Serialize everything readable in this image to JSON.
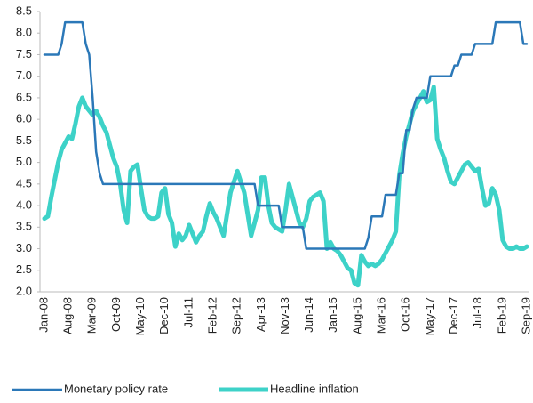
{
  "chart_data": {
    "type": "line",
    "categories": [
      "Jan-08",
      null,
      null,
      null,
      null,
      null,
      null,
      "Aug-08",
      null,
      null,
      null,
      null,
      null,
      null,
      "Mar-09",
      null,
      null,
      null,
      null,
      null,
      null,
      "Oct-09",
      null,
      null,
      null,
      null,
      null,
      null,
      "May-10",
      null,
      null,
      null,
      null,
      null,
      null,
      "Dec-10",
      null,
      null,
      null,
      null,
      null,
      null,
      "Jul-11",
      null,
      null,
      null,
      null,
      null,
      null,
      "Feb-12",
      null,
      null,
      null,
      null,
      null,
      null,
      "Sep-12",
      null,
      null,
      null,
      null,
      null,
      null,
      "Apr-13",
      null,
      null,
      null,
      null,
      null,
      null,
      "Nov-13",
      null,
      null,
      null,
      null,
      null,
      null,
      "Jun-14",
      null,
      null,
      null,
      null,
      null,
      null,
      "Jan-15",
      null,
      null,
      null,
      null,
      null,
      null,
      "Aug-15",
      null,
      null,
      null,
      null,
      null,
      null,
      "Mar-16",
      null,
      null,
      null,
      null,
      null,
      null,
      "Oct-16",
      null,
      null,
      null,
      null,
      null,
      null,
      "May-17",
      null,
      null,
      null,
      null,
      null,
      null,
      "Dec-17",
      null,
      null,
      null,
      null,
      null,
      null,
      "Jul-18",
      null,
      null,
      null,
      null,
      null,
      null,
      "Feb-19",
      null,
      null,
      null,
      null,
      null,
      null,
      "Sep-19"
    ],
    "series": [
      {
        "name": "Monetary policy rate",
        "color": "#2b78b8",
        "width": 2.5,
        "values": [
          7.5,
          7.5,
          7.5,
          7.5,
          7.5,
          7.75,
          8.25,
          8.25,
          8.25,
          8.25,
          8.25,
          8.25,
          7.75,
          7.5,
          6.5,
          5.25,
          4.75,
          4.5,
          4.5,
          4.5,
          4.5,
          4.5,
          4.5,
          4.5,
          4.5,
          4.5,
          4.5,
          4.5,
          4.5,
          4.5,
          4.5,
          4.5,
          4.5,
          4.5,
          4.5,
          4.5,
          4.5,
          4.5,
          4.5,
          4.5,
          4.5,
          4.5,
          4.5,
          4.5,
          4.5,
          4.5,
          4.5,
          4.5,
          4.5,
          4.5,
          4.5,
          4.5,
          4.5,
          4.5,
          4.5,
          4.5,
          4.5,
          4.5,
          4.5,
          4.5,
          4.5,
          4.5,
          4.0,
          4.0,
          4.0,
          4.0,
          4.0,
          4.0,
          4.0,
          3.5,
          3.5,
          3.5,
          3.5,
          3.5,
          3.5,
          3.5,
          3.0,
          3.0,
          3.0,
          3.0,
          3.0,
          3.0,
          3.0,
          3.0,
          3.0,
          3.0,
          3.0,
          3.0,
          3.0,
          3.0,
          3.0,
          3.0,
          3.0,
          3.0,
          3.25,
          3.75,
          3.75,
          3.75,
          3.75,
          4.25,
          4.25,
          4.25,
          4.25,
          4.75,
          4.75,
          5.75,
          5.75,
          6.25,
          6.5,
          6.5,
          6.5,
          6.5,
          7.0,
          7.0,
          7.0,
          7.0,
          7.0,
          7.0,
          7.0,
          7.25,
          7.25,
          7.5,
          7.5,
          7.5,
          7.5,
          7.75,
          7.75,
          7.75,
          7.75,
          7.75,
          7.75,
          8.25,
          8.25,
          8.25,
          8.25,
          8.25,
          8.25,
          8.25,
          8.25,
          7.75,
          7.75
        ]
      },
      {
        "name": "Headline inflation",
        "color": "#3dd2c8",
        "width": 5,
        "values": [
          3.7,
          3.75,
          4.2,
          4.6,
          5.0,
          5.3,
          5.45,
          5.6,
          5.55,
          5.9,
          6.3,
          6.5,
          6.3,
          6.2,
          6.1,
          6.2,
          6.05,
          5.85,
          5.7,
          5.4,
          5.1,
          4.9,
          4.5,
          3.9,
          3.6,
          4.8,
          4.9,
          4.95,
          4.4,
          3.9,
          3.75,
          3.7,
          3.7,
          3.75,
          4.3,
          4.4,
          3.8,
          3.6,
          3.05,
          3.35,
          3.2,
          3.3,
          3.55,
          3.35,
          3.15,
          3.3,
          3.4,
          3.75,
          4.05,
          3.85,
          3.7,
          3.5,
          3.3,
          3.8,
          4.3,
          4.55,
          4.8,
          4.55,
          4.3,
          3.8,
          3.3,
          3.6,
          3.9,
          4.65,
          4.65,
          4.0,
          3.6,
          3.5,
          3.45,
          3.4,
          3.9,
          4.5,
          4.2,
          3.9,
          3.6,
          3.5,
          3.7,
          4.1,
          4.2,
          4.25,
          4.3,
          4.1,
          3.0,
          3.15,
          3.0,
          2.95,
          2.85,
          2.7,
          2.55,
          2.5,
          2.2,
          2.15,
          2.85,
          2.7,
          2.6,
          2.65,
          2.6,
          2.65,
          2.75,
          2.9,
          3.05,
          3.2,
          3.4,
          4.7,
          5.2,
          5.6,
          5.9,
          6.2,
          6.35,
          6.5,
          6.65,
          6.4,
          6.45,
          6.75,
          5.55,
          5.3,
          5.1,
          4.8,
          4.55,
          4.5,
          4.65,
          4.8,
          4.95,
          5.0,
          4.9,
          4.8,
          4.85,
          4.4,
          4.0,
          4.05,
          4.4,
          4.25,
          3.9,
          3.2,
          3.05,
          3.0,
          3.0,
          3.05,
          3.0,
          3.0,
          3.05
        ]
      }
    ],
    "ylim": [
      2,
      8.5
    ],
    "yticks": [
      {
        "value": 2,
        "label": "2.0"
      },
      2.5,
      {
        "value": 3,
        "label": "3.0"
      },
      3.5,
      {
        "value": 4,
        "label": "4.0"
      },
      4.5,
      {
        "value": 5,
        "label": "5.0"
      },
      5.5,
      {
        "value": 6,
        "label": "6.0"
      },
      6.5,
      {
        "value": 7,
        "label": "7.0"
      },
      7.5,
      {
        "value": 8,
        "label": "8.0"
      },
      8.5
    ],
    "grid": false,
    "legend": "bottom"
  }
}
